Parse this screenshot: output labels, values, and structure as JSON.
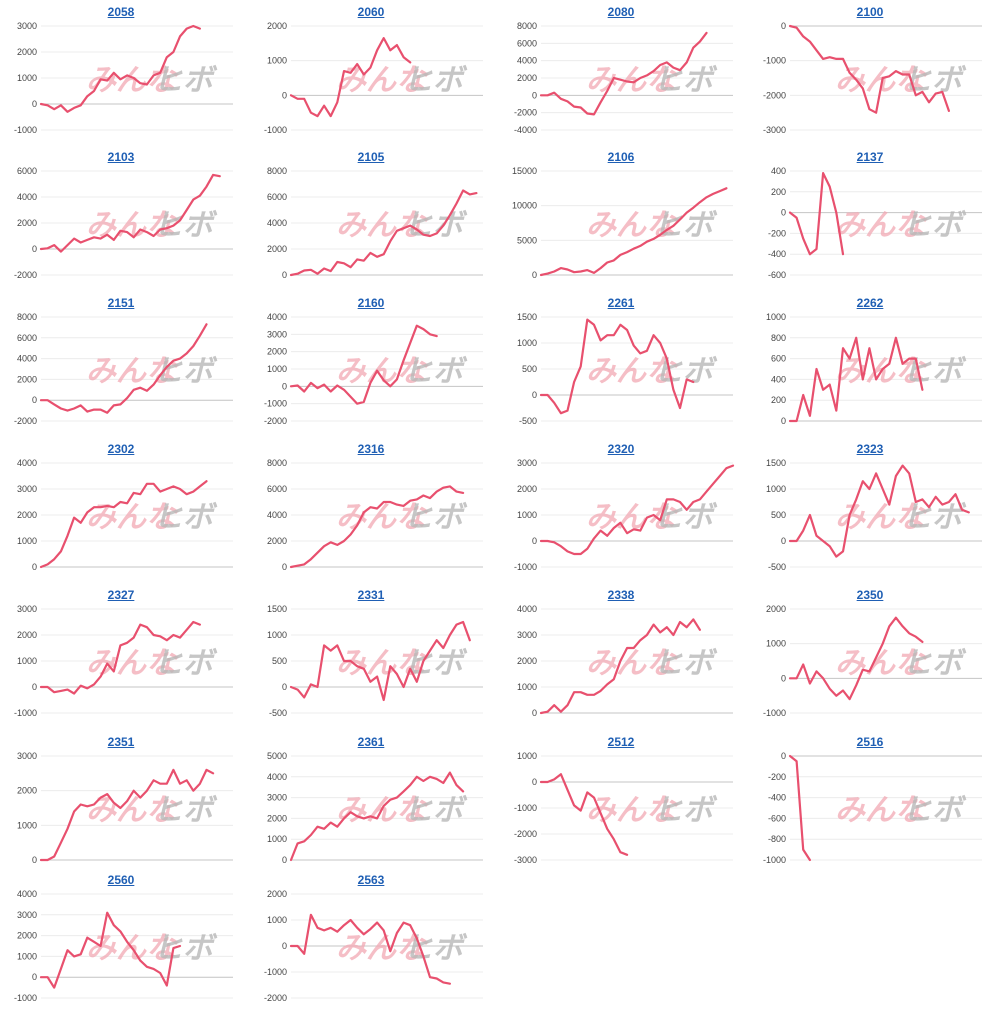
{
  "watermark": {
    "part1": "みんな",
    "part2": "ヒボ",
    "color1": "#f2a9b4",
    "color2": "#b8b8b8"
  },
  "line_color": "#e8506e",
  "chart_data": [
    {
      "type": "line",
      "title": "2058",
      "ylim": [
        -1000,
        3000
      ],
      "yticks": [
        -1000,
        0,
        1000,
        2000,
        3000
      ],
      "values": [
        0,
        -50,
        -200,
        -50,
        -300,
        -150,
        -50,
        300,
        500,
        950,
        900,
        1200,
        950,
        1100,
        1000,
        800,
        750,
        1100,
        1200,
        1800,
        2000,
        2600,
        2900,
        3000,
        2900
      ]
    },
    {
      "type": "line",
      "title": "2060",
      "ylim": [
        -1000,
        2000
      ],
      "yticks": [
        -1000,
        0,
        1000,
        2000
      ],
      "values": [
        0,
        -100,
        -100,
        -500,
        -600,
        -300,
        -600,
        -200,
        700,
        650,
        900,
        600,
        800,
        1300,
        1650,
        1300,
        1450,
        1100,
        950
      ]
    },
    {
      "type": "line",
      "title": "2080",
      "ylim": [
        -4000,
        8000
      ],
      "yticks": [
        -4000,
        -2000,
        0,
        2000,
        4000,
        6000,
        8000
      ],
      "values": [
        0,
        0,
        300,
        -400,
        -700,
        -1300,
        -1400,
        -2100,
        -2200,
        -800,
        500,
        2000,
        1800,
        1600,
        1500,
        2000,
        2300,
        2800,
        3500,
        3800,
        3200,
        2900,
        3800,
        5500,
        6200,
        7200
      ]
    },
    {
      "type": "line",
      "title": "2100",
      "ylim": [
        -3000,
        0
      ],
      "yticks": [
        -3000,
        -2000,
        -1000,
        0
      ],
      "values": [
        0,
        -50,
        -300,
        -450,
        -700,
        -950,
        -900,
        -950,
        -950,
        -1350,
        -1550,
        -1800,
        -2400,
        -2500,
        -1500,
        -1450,
        -1300,
        -1400,
        -1400,
        -2000,
        -1900,
        -2200,
        -1950,
        -1900,
        -2450
      ]
    },
    {
      "type": "line",
      "title": "2103",
      "ylim": [
        -2000,
        6000
      ],
      "yticks": [
        -2000,
        0,
        2000,
        4000,
        6000
      ],
      "values": [
        0,
        50,
        300,
        -200,
        300,
        800,
        500,
        700,
        900,
        800,
        1100,
        700,
        1400,
        1300,
        900,
        1500,
        1300,
        1000,
        1500,
        1600,
        1800,
        2200,
        3000,
        3800,
        4100,
        4800,
        5700,
        5600
      ]
    },
    {
      "type": "line",
      "title": "2105",
      "ylim": [
        0,
        8000
      ],
      "yticks": [
        0,
        2000,
        4000,
        6000,
        8000
      ],
      "values": [
        0,
        100,
        350,
        400,
        100,
        500,
        300,
        1000,
        900,
        600,
        1200,
        1100,
        1700,
        1400,
        1600,
        2600,
        3400,
        3600,
        3800,
        3500,
        3100,
        3000,
        3200,
        3800,
        4600,
        5500,
        6500,
        6200,
        6300
      ]
    },
    {
      "type": "line",
      "title": "2106",
      "ylim": [
        0,
        15000
      ],
      "yticks": [
        0,
        5000,
        10000,
        15000
      ],
      "values": [
        0,
        200,
        500,
        1000,
        800,
        400,
        500,
        700,
        300,
        1000,
        1800,
        2100,
        2900,
        3300,
        3800,
        4200,
        4800,
        5200,
        5800,
        6500,
        7100,
        8000,
        9000,
        9700,
        10500,
        11200,
        11700,
        12100,
        12500
      ]
    },
    {
      "type": "line",
      "title": "2137",
      "ylim": [
        -600,
        400
      ],
      "yticks": [
        -600,
        -400,
        -200,
        0,
        200,
        400
      ],
      "values": [
        0,
        -50,
        -250,
        -400,
        -350,
        380,
        250,
        0,
        -400
      ]
    },
    {
      "type": "line",
      "title": "2151",
      "ylim": [
        -2000,
        8000
      ],
      "yticks": [
        -2000,
        0,
        2000,
        4000,
        6000,
        8000
      ],
      "values": [
        0,
        0,
        -400,
        -800,
        -1000,
        -800,
        -500,
        -1100,
        -900,
        -900,
        -1200,
        -500,
        -400,
        200,
        1000,
        1200,
        900,
        1500,
        2400,
        3200,
        3800,
        4000,
        4500,
        5200,
        6200,
        7300
      ]
    },
    {
      "type": "line",
      "title": "2160",
      "ylim": [
        -2000,
        4000
      ],
      "yticks": [
        -2000,
        -1000,
        0,
        1000,
        2000,
        3000,
        4000
      ],
      "values": [
        0,
        50,
        -300,
        200,
        -100,
        100,
        -300,
        50,
        -200,
        -600,
        -1000,
        -900,
        200,
        900,
        350,
        0,
        400,
        1500,
        2500,
        3500,
        3300,
        3000,
        2900
      ]
    },
    {
      "type": "line",
      "title": "2261",
      "ylim": [
        -500,
        1500
      ],
      "yticks": [
        -500,
        0,
        500,
        1000,
        1500
      ],
      "values": [
        0,
        0,
        -150,
        -350,
        -300,
        250,
        550,
        1450,
        1350,
        1050,
        1150,
        1150,
        1350,
        1250,
        950,
        800,
        850,
        1150,
        1000,
        700,
        100,
        -250,
        300,
        250
      ]
    },
    {
      "type": "line",
      "title": "2262",
      "ylim": [
        0,
        1000
      ],
      "yticks": [
        0,
        200,
        400,
        600,
        800,
        1000
      ],
      "values": [
        0,
        0,
        250,
        50,
        500,
        300,
        350,
        100,
        700,
        600,
        800,
        400,
        700,
        400,
        500,
        550,
        800,
        550,
        600,
        600,
        300
      ]
    },
    {
      "type": "line",
      "title": "2302",
      "ylim": [
        0,
        4000
      ],
      "yticks": [
        0,
        1000,
        2000,
        3000,
        4000
      ],
      "values": [
        0,
        100,
        300,
        600,
        1200,
        1900,
        1700,
        2100,
        2300,
        2300,
        2350,
        2300,
        2500,
        2450,
        2850,
        2800,
        3200,
        3200,
        2900,
        3000,
        3100,
        3000,
        2800,
        2900,
        3100,
        3300
      ]
    },
    {
      "type": "line",
      "title": "2316",
      "ylim": [
        0,
        8000
      ],
      "yticks": [
        0,
        2000,
        4000,
        6000,
        8000
      ],
      "values": [
        0,
        100,
        200,
        600,
        1100,
        1600,
        1900,
        1700,
        2000,
        2500,
        3200,
        4200,
        4600,
        4500,
        5000,
        5000,
        4800,
        4700,
        5100,
        5200,
        5500,
        5300,
        5800,
        6100,
        6200,
        5800,
        5700
      ]
    },
    {
      "type": "line",
      "title": "2320",
      "ylim": [
        -1000,
        3000
      ],
      "yticks": [
        -1000,
        0,
        1000,
        2000,
        3000
      ],
      "values": [
        0,
        0,
        -50,
        -200,
        -400,
        -500,
        -500,
        -300,
        100,
        400,
        200,
        500,
        700,
        300,
        450,
        400,
        900,
        1000,
        800,
        1600,
        1600,
        1500,
        1200,
        1500,
        1600,
        1900,
        2200,
        2500,
        2800,
        2900
      ]
    },
    {
      "type": "line",
      "title": "2323",
      "ylim": [
        -500,
        1500
      ],
      "yticks": [
        -500,
        0,
        500,
        1000,
        1500
      ],
      "values": [
        0,
        0,
        200,
        500,
        100,
        0,
        -100,
        -300,
        -200,
        500,
        800,
        1150,
        1000,
        1300,
        1000,
        700,
        1250,
        1450,
        1300,
        750,
        800,
        650,
        850,
        700,
        750,
        900,
        600,
        550
      ]
    },
    {
      "type": "line",
      "title": "2327",
      "ylim": [
        -1000,
        3000
      ],
      "yticks": [
        -1000,
        0,
        1000,
        2000,
        3000
      ],
      "values": [
        0,
        0,
        -200,
        -150,
        -100,
        -250,
        50,
        -50,
        100,
        400,
        900,
        600,
        1600,
        1700,
        1900,
        2400,
        2300,
        2000,
        1950,
        1800,
        2000,
        1900,
        2200,
        2500,
        2400
      ]
    },
    {
      "type": "line",
      "title": "2331",
      "ylim": [
        -500,
        1500
      ],
      "yticks": [
        -500,
        0,
        500,
        1000,
        1500
      ],
      "values": [
        0,
        -50,
        -200,
        50,
        0,
        800,
        700,
        800,
        500,
        500,
        400,
        350,
        100,
        200,
        -250,
        400,
        250,
        0,
        350,
        100,
        500,
        700,
        900,
        750,
        1000,
        1200,
        1250,
        900
      ]
    },
    {
      "type": "line",
      "title": "2338",
      "ylim": [
        0,
        4000
      ],
      "yticks": [
        0,
        1000,
        2000,
        3000,
        4000
      ],
      "values": [
        0,
        50,
        300,
        50,
        300,
        800,
        800,
        700,
        700,
        850,
        1100,
        1300,
        2000,
        2500,
        2500,
        2800,
        3000,
        3400,
        3100,
        3300,
        3000,
        3500,
        3300,
        3600,
        3200
      ]
    },
    {
      "type": "line",
      "title": "2350",
      "ylim": [
        -1000,
        2000
      ],
      "yticks": [
        -1000,
        0,
        1000,
        2000
      ],
      "values": [
        0,
        0,
        400,
        -150,
        200,
        0,
        -300,
        -500,
        -350,
        -600,
        -200,
        250,
        200,
        600,
        1000,
        1500,
        1750,
        1500,
        1300,
        1200,
        1050
      ]
    },
    {
      "type": "line",
      "title": "2351",
      "ylim": [
        0,
        3000
      ],
      "yticks": [
        0,
        1000,
        2000,
        3000
      ],
      "values": [
        0,
        0,
        100,
        500,
        900,
        1400,
        1600,
        1550,
        1600,
        1800,
        1900,
        1650,
        1500,
        1700,
        2000,
        1800,
        2000,
        2300,
        2200,
        2200,
        2600,
        2200,
        2300,
        2000,
        2200,
        2600,
        2500
      ]
    },
    {
      "type": "line",
      "title": "2361",
      "ylim": [
        0,
        5000
      ],
      "yticks": [
        0,
        1000,
        2000,
        3000,
        4000,
        5000
      ],
      "values": [
        0,
        800,
        900,
        1200,
        1600,
        1500,
        1800,
        1600,
        2000,
        2300,
        2100,
        2000,
        2100,
        2000,
        2600,
        2900,
        3000,
        3300,
        3600,
        4000,
        3800,
        4000,
        3900,
        3700,
        4200,
        3600,
        3300
      ]
    },
    {
      "type": "line",
      "title": "2512",
      "ylim": [
        -3000,
        1000
      ],
      "yticks": [
        -3000,
        -2000,
        -1000,
        0,
        1000
      ],
      "values": [
        0,
        0,
        100,
        300,
        -300,
        -900,
        -1100,
        -400,
        -600,
        -1200,
        -1800,
        -2200,
        -2700,
        -2800
      ]
    },
    {
      "type": "line",
      "title": "2516",
      "ylim": [
        -1000,
        0
      ],
      "yticks": [
        -1000,
        -800,
        -600,
        -400,
        -200,
        0
      ],
      "values": [
        0,
        -50,
        -900,
        -1000
      ]
    },
    {
      "type": "line",
      "title": "2560",
      "ylim": [
        -1000,
        4000
      ],
      "yticks": [
        -1000,
        0,
        1000,
        2000,
        3000,
        4000
      ],
      "values": [
        0,
        0,
        -500,
        400,
        1300,
        1000,
        1100,
        1900,
        1700,
        1500,
        3100,
        2500,
        2200,
        1700,
        1300,
        800,
        500,
        400,
        200,
        -400,
        1400,
        1500
      ]
    },
    {
      "type": "line",
      "title": "2563",
      "ylim": [
        -2000,
        2000
      ],
      "yticks": [
        -2000,
        -1000,
        0,
        1000,
        2000
      ],
      "values": [
        0,
        0,
        -300,
        1200,
        700,
        600,
        700,
        550,
        800,
        1000,
        700,
        450,
        650,
        900,
        600,
        -200,
        500,
        900,
        800,
        300,
        -400,
        -1200,
        -1250,
        -1400,
        -1450
      ]
    }
  ]
}
